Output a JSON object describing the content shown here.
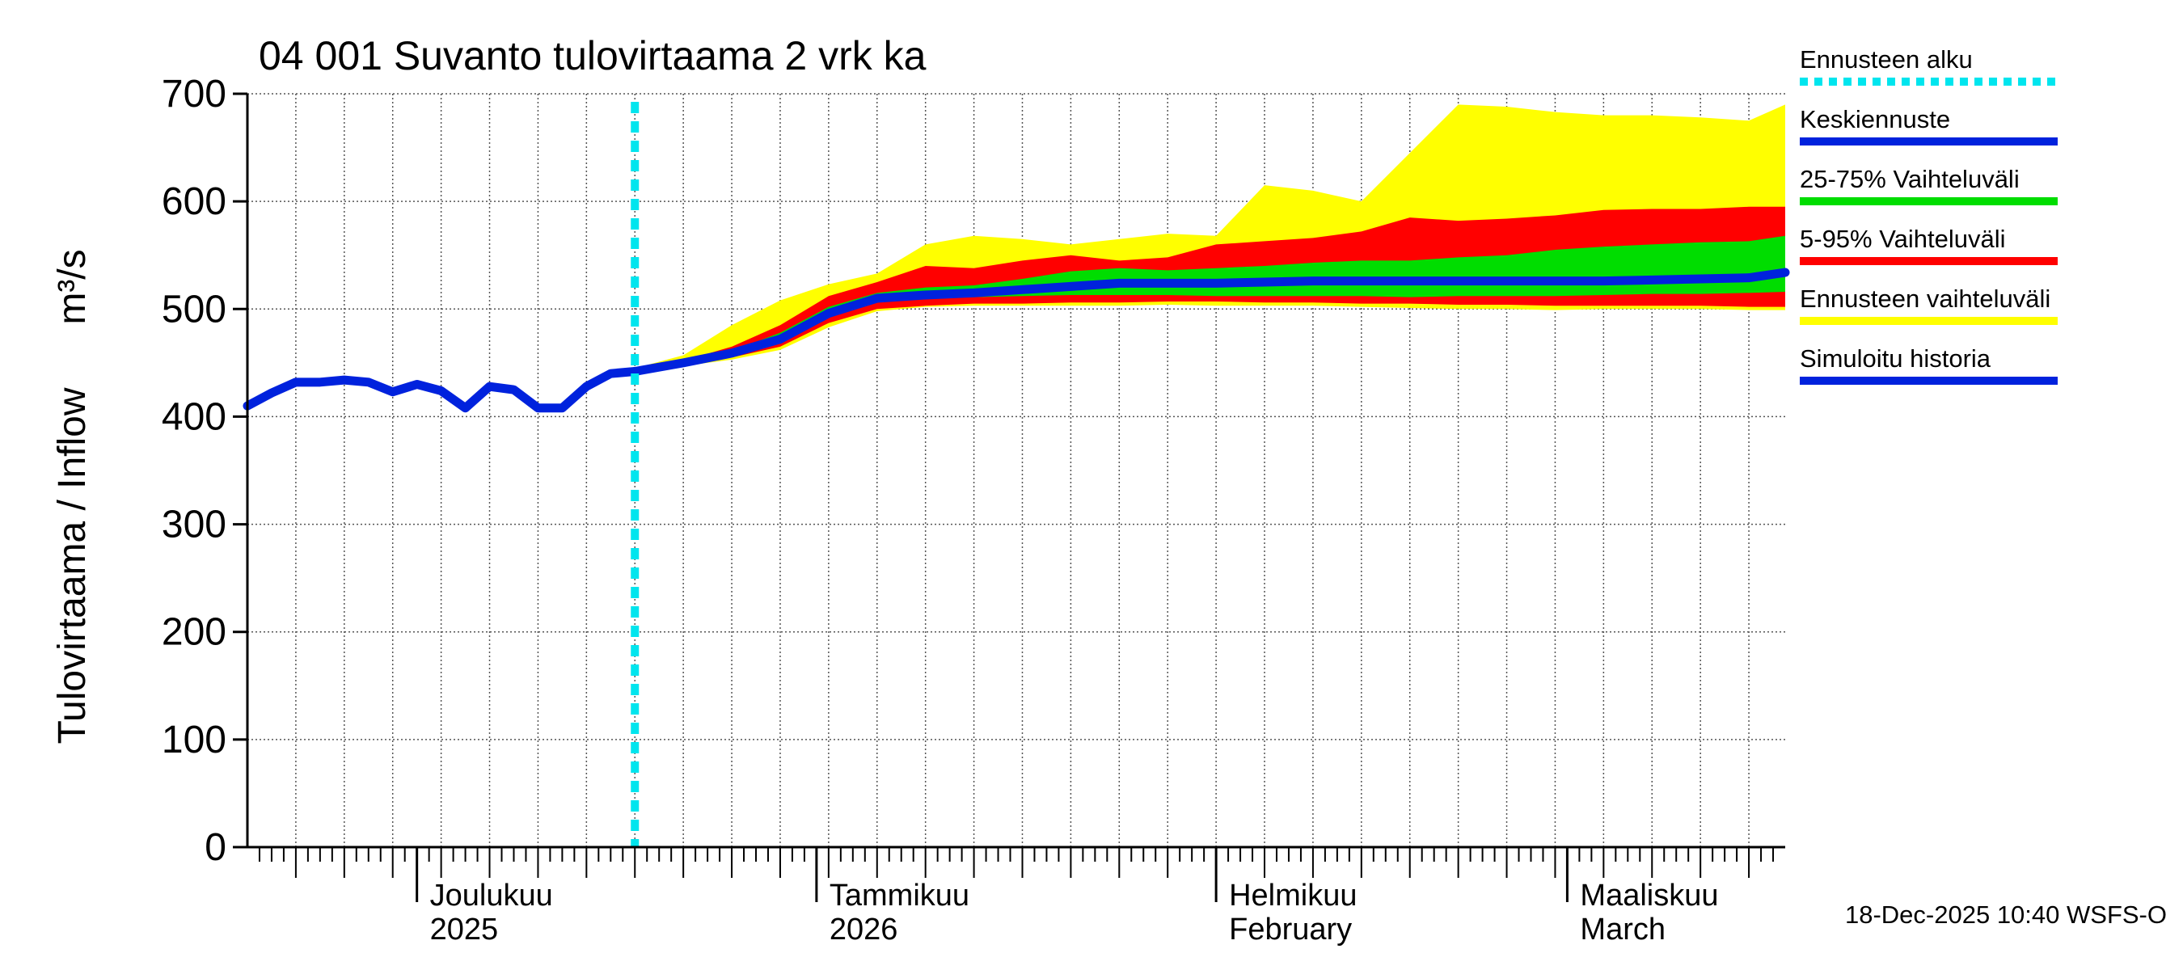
{
  "chart_data": {
    "type": "area",
    "title": "04 001 Suvanto tulovirtaama 2 vrk ka",
    "ylabel": "Tulovirtaama / Inflow",
    "yunit": "m³/s",
    "ylim": [
      0,
      700
    ],
    "yticks": [
      0,
      100,
      200,
      300,
      400,
      500,
      600,
      700
    ],
    "xlim": [
      0,
      127
    ],
    "forecast_start": 32,
    "month_boundaries": [
      14,
      47,
      80,
      109
    ],
    "month_labels": [
      {
        "x": 14,
        "line1": "Joulukuu",
        "line2": "2025"
      },
      {
        "x": 47,
        "line1": "Tammikuu",
        "line2": "2026"
      },
      {
        "x": 80,
        "line1": "Helmikuu",
        "line2": "February"
      },
      {
        "x": 109,
        "line1": "Maaliskuu",
        "line2": "March"
      }
    ],
    "simulated_history": {
      "x": [
        0,
        2,
        4,
        6,
        8,
        10,
        12,
        14,
        16,
        18,
        20,
        22,
        24,
        26,
        28,
        30,
        32
      ],
      "y": [
        410,
        422,
        432,
        432,
        434,
        432,
        423,
        430,
        424,
        408,
        428,
        425,
        408,
        408,
        428,
        440,
        442
      ]
    },
    "forecast_x": [
      32,
      36,
      40,
      44,
      48,
      52,
      56,
      60,
      64,
      68,
      72,
      76,
      80,
      84,
      88,
      92,
      96,
      100,
      104,
      108,
      112,
      116,
      120,
      124,
      127
    ],
    "band_5_95_ensemble": {
      "lower": [
        442,
        447,
        453,
        462,
        483,
        498,
        502,
        503,
        503,
        503,
        503,
        504,
        503,
        503,
        503,
        502,
        501,
        500,
        500,
        499,
        500,
        500,
        500,
        499,
        499
      ],
      "upper": [
        445,
        457,
        485,
        508,
        523,
        533,
        560,
        568,
        565,
        560,
        565,
        570,
        568,
        615,
        610,
        600,
        645,
        690,
        688,
        683,
        680,
        680,
        678,
        675,
        690
      ]
    },
    "band_5_95": {
      "lower": [
        442,
        448,
        455,
        465,
        487,
        500,
        503,
        505,
        505,
        506,
        506,
        507,
        507,
        506,
        506,
        505,
        505,
        504,
        504,
        503,
        503,
        503,
        503,
        502,
        502
      ],
      "upper": [
        444,
        452,
        465,
        485,
        512,
        525,
        540,
        538,
        545,
        550,
        545,
        548,
        560,
        563,
        566,
        572,
        585,
        582,
        584,
        587,
        592,
        593,
        593,
        595,
        595
      ]
    },
    "band_25_75": {
      "lower": [
        442,
        449,
        457,
        468,
        493,
        506,
        510,
        511,
        512,
        513,
        513,
        513,
        512,
        512,
        512,
        512,
        511,
        512,
        512,
        512,
        513,
        514,
        514,
        515,
        516
      ],
      "upper": [
        443,
        451,
        461,
        478,
        502,
        515,
        520,
        522,
        528,
        535,
        538,
        536,
        538,
        540,
        543,
        545,
        545,
        548,
        550,
        555,
        558,
        560,
        562,
        563,
        568
      ]
    },
    "median_forecast": {
      "y": [
        442,
        450,
        459,
        472,
        496,
        510,
        513,
        515,
        518,
        521,
        524,
        524,
        524,
        525,
        526,
        526,
        526,
        526,
        526,
        526,
        526,
        527,
        528,
        529,
        534
      ]
    },
    "legend": [
      {
        "label": "Ennusteen alku",
        "color": "#00e5ee",
        "style": "dotted"
      },
      {
        "label": "Keskiennuste",
        "color": "#0022dd",
        "style": "solid"
      },
      {
        "label": "25-75% Vaihteluväli",
        "color": "#00dd00",
        "style": "solid"
      },
      {
        "label": "5-95% Vaihteluväli",
        "color": "#ff0000",
        "style": "solid"
      },
      {
        "label": "Ennusteen vaihteluväli",
        "color": "#ffff00",
        "style": "solid"
      },
      {
        "label": "Simuloitu historia",
        "color": "#0022dd",
        "style": "solid"
      }
    ],
    "timestamp": "18-Dec-2025 10:40 WSFS-O",
    "colors": {
      "yellow": "#ffff00",
      "red": "#ff0000",
      "green": "#00dd00",
      "blue": "#0022dd",
      "cyan": "#00e5ee",
      "grid": "#555555"
    }
  }
}
